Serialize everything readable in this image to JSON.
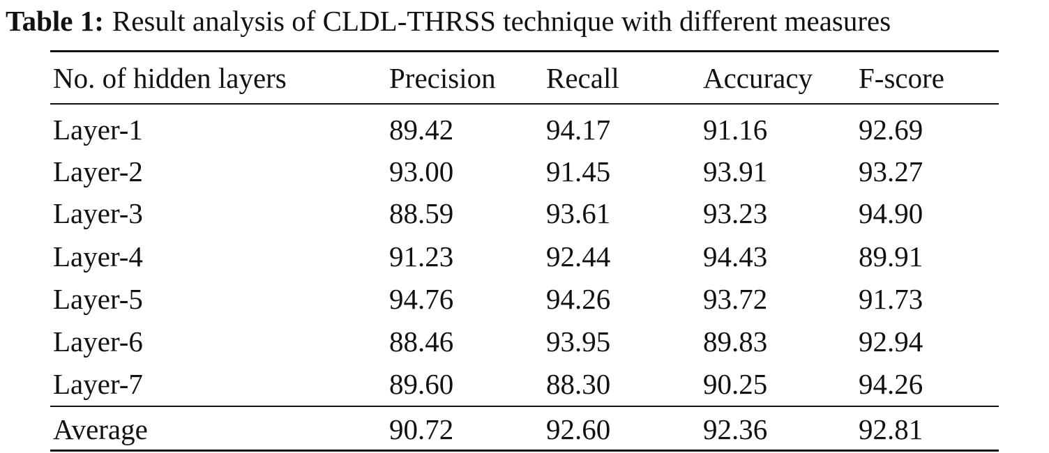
{
  "caption": {
    "label": "Table 1:",
    "text": "Result analysis of CLDL-THRSS technique with different measures"
  },
  "table": {
    "headers": [
      "No. of hidden layers",
      "Precision",
      "Recall",
      "Accuracy",
      "F-score"
    ],
    "rows": [
      [
        "Layer-1",
        "89.42",
        "94.17",
        "91.16",
        "92.69"
      ],
      [
        "Layer-2",
        "93.00",
        "91.45",
        "93.91",
        "93.27"
      ],
      [
        "Layer-3",
        "88.59",
        "93.61",
        "93.23",
        "94.90"
      ],
      [
        "Layer-4",
        "91.23",
        "92.44",
        "94.43",
        "89.91"
      ],
      [
        "Layer-5",
        "94.76",
        "94.26",
        "93.72",
        "91.73"
      ],
      [
        "Layer-6",
        "88.46",
        "93.95",
        "89.83",
        "92.94"
      ],
      [
        "Layer-7",
        "89.60",
        "88.30",
        "90.25",
        "94.26"
      ]
    ],
    "footer": [
      "Average",
      "90.72",
      "92.60",
      "92.36",
      "92.81"
    ]
  }
}
